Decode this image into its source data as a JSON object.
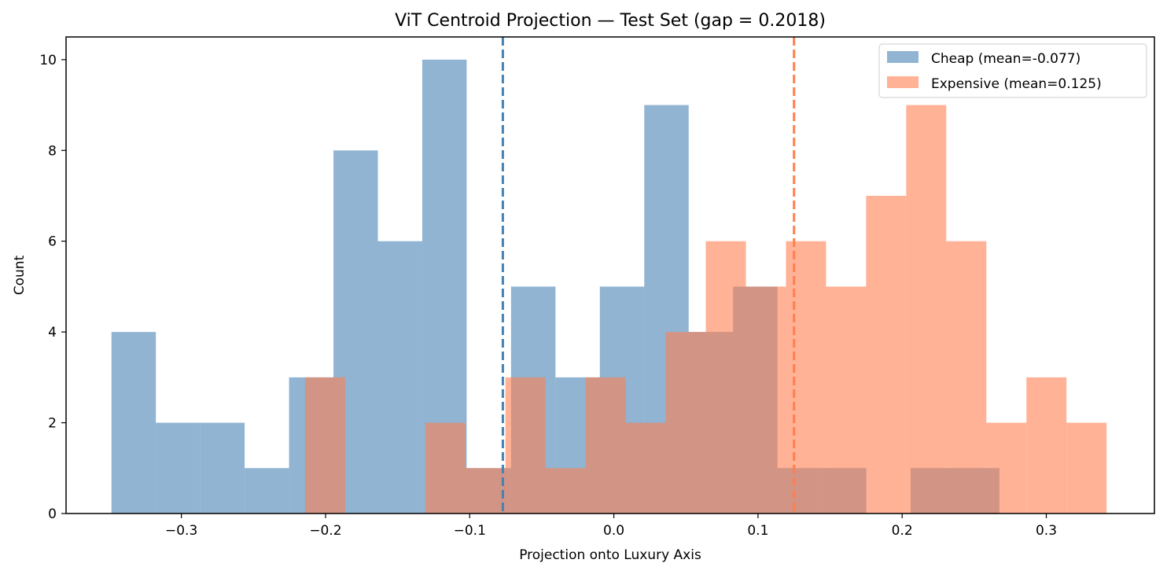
{
  "chart_data": {
    "type": "bar",
    "title": "ViT Centroid Projection — Test Set (gap = 0.2018)",
    "xlabel": "Projection onto Luxury Axis",
    "ylabel": "Count",
    "xlim": [
      -0.38,
      0.375
    ],
    "ylim": [
      0,
      10.5
    ],
    "xticks": [
      -0.3,
      -0.2,
      -0.1,
      0.0,
      0.1,
      0.2,
      0.3
    ],
    "xtick_labels": [
      "−0.3",
      "−0.2",
      "−0.1",
      "0.0",
      "0.1",
      "0.2",
      "0.3"
    ],
    "yticks": [
      0,
      2,
      4,
      6,
      8,
      10
    ],
    "ytick_labels": [
      "0",
      "2",
      "4",
      "6",
      "8",
      "10"
    ],
    "grid": false,
    "legend_position": "top-right",
    "series": [
      {
        "name": "Cheap (mean=-0.077)",
        "color": "#4682b4",
        "opacity": 0.6,
        "mean": -0.077,
        "bin_edges": [
          -0.3485,
          -0.3177,
          -0.2869,
          -0.2561,
          -0.2253,
          -0.1945,
          -0.1637,
          -0.1329,
          -0.1021,
          -0.0713,
          -0.0405,
          -0.0097,
          0.0211,
          0.0519,
          0.0827,
          0.1135,
          0.1443,
          0.1751,
          0.2059,
          0.2367,
          0.2675
        ],
        "values": [
          4,
          2,
          2,
          1,
          3,
          8,
          6,
          10,
          1,
          5,
          3,
          5,
          9,
          4,
          5,
          1,
          1,
          0,
          1,
          1
        ]
      },
      {
        "name": "Expensive (mean=0.125)",
        "color": "#ff7f50",
        "opacity": 0.6,
        "mean": 0.125,
        "bin_edges": [
          -0.2142,
          -0.1864,
          -0.1586,
          -0.1308,
          -0.103,
          -0.0752,
          -0.0474,
          -0.0196,
          0.0082,
          0.036,
          0.0638,
          0.0916,
          0.1194,
          0.1472,
          0.175,
          0.2028,
          0.2306,
          0.2584,
          0.2862,
          0.314,
          0.3418
        ],
        "values": [
          3,
          0,
          0,
          2,
          1,
          3,
          1,
          3,
          2,
          4,
          6,
          5,
          6,
          5,
          7,
          9,
          6,
          2,
          3,
          2
        ]
      }
    ]
  }
}
